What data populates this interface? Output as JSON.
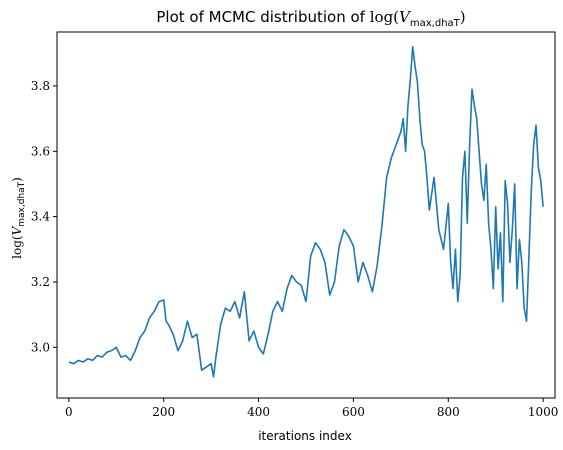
{
  "chart_data": {
    "type": "line",
    "title": "Plot of MCMC distribution of",
    "title_math": {
      "func": "log(",
      "var": "V",
      "sub": "max,dhaT",
      "close": ")"
    },
    "xlabel": "iterations index",
    "ylabel_math": {
      "func": "log(",
      "var": "V",
      "sub": "max,dhaT",
      "close": ")"
    },
    "xlim": [
      -25,
      1025
    ],
    "ylim": [
      2.845,
      3.965
    ],
    "xticks": [
      0,
      200,
      400,
      600,
      800,
      1000
    ],
    "yticks": [
      3.0,
      3.2,
      3.4,
      3.6,
      3.8
    ],
    "ytick_labels": [
      "3.0",
      "3.2",
      "3.4",
      "3.6",
      "3.8"
    ],
    "line_color": "#1f77b4",
    "grid": false,
    "series": [
      {
        "x": [
          0,
          10,
          20,
          30,
          40,
          50,
          60,
          70,
          80,
          90,
          100,
          110,
          120,
          130,
          140,
          150,
          160,
          170,
          180,
          190,
          200,
          205,
          210,
          220,
          230,
          240,
          250,
          260,
          270,
          280,
          290,
          300,
          305,
          310,
          320,
          330,
          340,
          350,
          360,
          370,
          380,
          390,
          400,
          410,
          420,
          430,
          440,
          450,
          460,
          470,
          480,
          490,
          500,
          510,
          520,
          530,
          540,
          550,
          560,
          570,
          580,
          590,
          600,
          610,
          620,
          630,
          640,
          650,
          660,
          670,
          680,
          690,
          700,
          705,
          710,
          715,
          720,
          725,
          730,
          735,
          740,
          745,
          750,
          755,
          760,
          770,
          780,
          790,
          800,
          805,
          810,
          815,
          820,
          825,
          830,
          835,
          840,
          845,
          850,
          855,
          860,
          865,
          870,
          875,
          880,
          885,
          890,
          895,
          900,
          905,
          910,
          915,
          920,
          925,
          930,
          935,
          940,
          945,
          950,
          955,
          960,
          965,
          970,
          975,
          980,
          985,
          990,
          995,
          1000
        ],
        "values": [
          2.955,
          2.95,
          2.96,
          2.955,
          2.965,
          2.96,
          2.975,
          2.97,
          2.985,
          2.99,
          3.0,
          2.97,
          2.975,
          2.96,
          2.99,
          3.03,
          3.05,
          3.09,
          3.11,
          3.14,
          3.145,
          3.08,
          3.07,
          3.04,
          2.99,
          3.02,
          3.08,
          3.03,
          3.04,
          2.93,
          2.94,
          2.95,
          2.91,
          2.97,
          3.07,
          3.12,
          3.11,
          3.14,
          3.09,
          3.17,
          3.02,
          3.05,
          3.0,
          2.98,
          3.04,
          3.11,
          3.14,
          3.11,
          3.18,
          3.22,
          3.2,
          3.19,
          3.14,
          3.28,
          3.32,
          3.3,
          3.26,
          3.16,
          3.2,
          3.31,
          3.36,
          3.34,
          3.31,
          3.2,
          3.26,
          3.22,
          3.17,
          3.25,
          3.37,
          3.52,
          3.58,
          3.62,
          3.66,
          3.7,
          3.6,
          3.74,
          3.82,
          3.92,
          3.86,
          3.81,
          3.7,
          3.62,
          3.6,
          3.52,
          3.42,
          3.52,
          3.36,
          3.3,
          3.44,
          3.26,
          3.18,
          3.3,
          3.14,
          3.22,
          3.52,
          3.6,
          3.38,
          3.62,
          3.79,
          3.74,
          3.7,
          3.6,
          3.5,
          3.45,
          3.56,
          3.38,
          3.3,
          3.18,
          3.43,
          3.24,
          3.35,
          3.14,
          3.51,
          3.44,
          3.26,
          3.36,
          3.5,
          3.18,
          3.33,
          3.26,
          3.12,
          3.08,
          3.28,
          3.48,
          3.62,
          3.68,
          3.55,
          3.51,
          3.43
        ]
      }
    ]
  }
}
